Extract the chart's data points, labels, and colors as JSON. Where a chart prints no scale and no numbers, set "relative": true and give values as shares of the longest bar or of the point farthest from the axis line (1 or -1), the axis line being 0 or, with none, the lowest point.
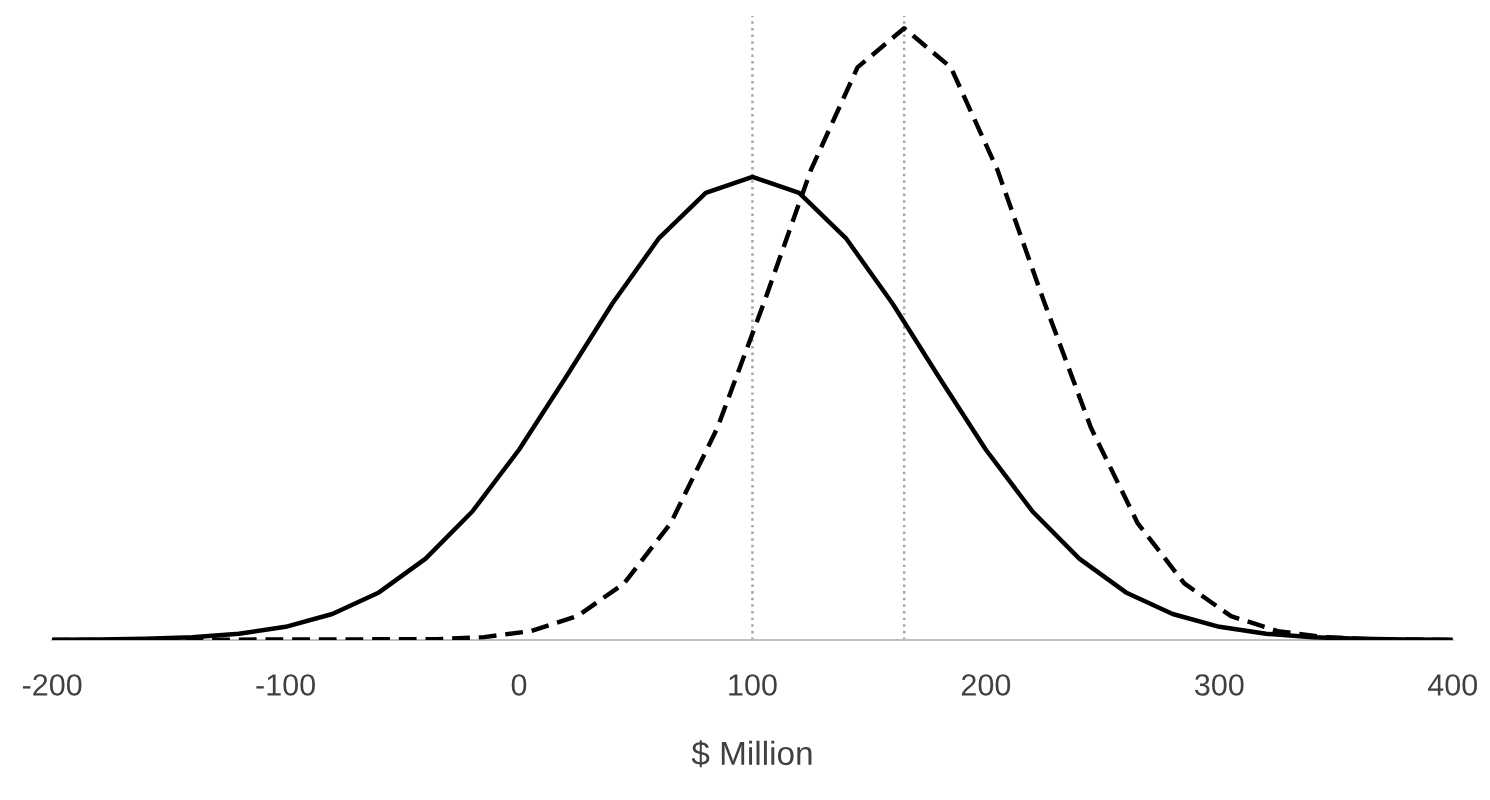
{
  "chart_data": {
    "type": "line",
    "relative": true,
    "xlabel": "$ Million",
    "xlim": [
      -200,
      400
    ],
    "xticks": [
      -200,
      -100,
      0,
      100,
      200,
      300,
      400
    ],
    "grid": false,
    "legend": false,
    "marker": "none",
    "series": [
      {
        "color": "#000000",
        "line_style": "solid",
        "x": [
          -200,
          -180,
          -160,
          -140,
          -120,
          -100,
          -80,
          -60,
          -40,
          -20,
          0,
          20,
          40,
          60,
          80,
          100,
          120,
          140,
          160,
          180,
          200,
          220,
          240,
          260,
          280,
          300,
          320,
          340,
          360,
          380,
          400
        ],
        "values": [
          0.0003,
          0.0007,
          0.0019,
          0.0045,
          0.0103,
          0.0216,
          0.0425,
          0.0778,
          0.133,
          0.21,
          0.311,
          0.429,
          0.55,
          0.657,
          0.731,
          0.757,
          0.731,
          0.657,
          0.55,
          0.429,
          0.311,
          0.21,
          0.133,
          0.0778,
          0.0425,
          0.0216,
          0.0103,
          0.0045,
          0.0019,
          0.0007,
          0.0003
        ]
      },
      {
        "color": "#000000",
        "line_style": "dashed",
        "x": [
          -200,
          -35,
          -15,
          5,
          25,
          45,
          65,
          85,
          105,
          125,
          145,
          165,
          185,
          205,
          225,
          245,
          265,
          285,
          305,
          325,
          345,
          365,
          400
        ],
        "values": [
          0,
          0.0013,
          0.0047,
          0.0145,
          0.039,
          0.0925,
          0.191,
          0.347,
          0.552,
          0.768,
          0.936,
          1,
          0.936,
          0.768,
          0.552,
          0.347,
          0.191,
          0.0925,
          0.039,
          0.0145,
          0.0047,
          0.0013,
          0
        ]
      }
    ],
    "ref_lines": [
      {
        "axis": "x",
        "value": 100,
        "color": "#a6a6a6",
        "line_style": "dotted"
      },
      {
        "axis": "x",
        "value": 165,
        "color": "#a6a6a6",
        "line_style": "dotted"
      }
    ]
  }
}
